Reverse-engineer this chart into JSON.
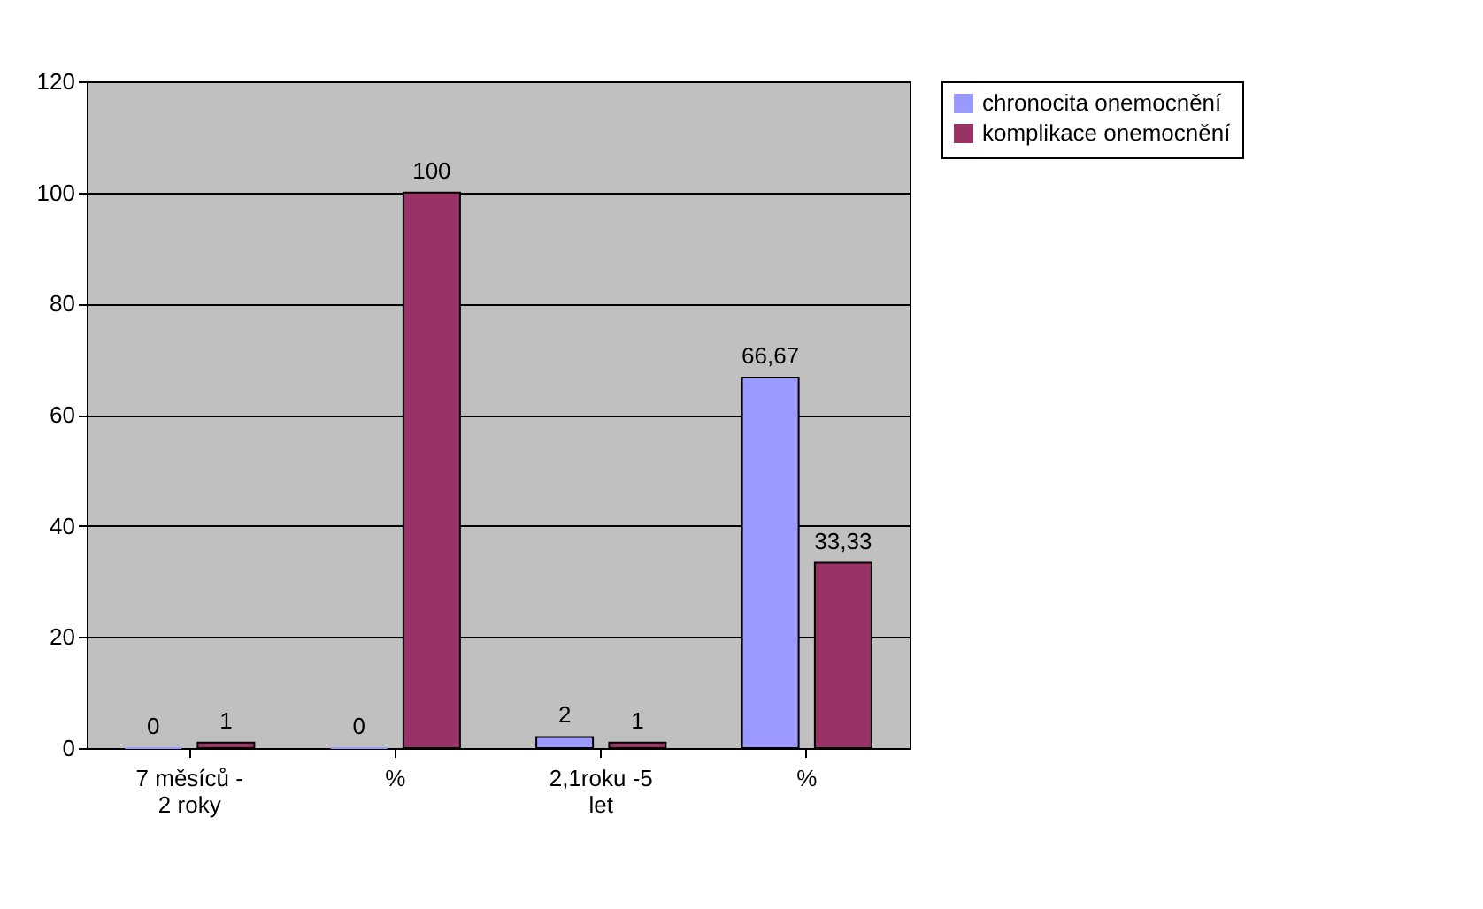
{
  "chart_data": {
    "type": "bar",
    "categories": [
      "7 měsíců - 2 roky",
      "%",
      "2,1roku -5 let",
      "%"
    ],
    "series": [
      {
        "name": "chronocita onemocnění",
        "color": "#9999ff",
        "values": [
          0,
          0,
          2,
          66.67
        ],
        "value_labels": [
          "0",
          "0",
          "2",
          "66,67"
        ]
      },
      {
        "name": "komplikace onemocnění",
        "color": "#993366",
        "values": [
          1,
          100,
          1,
          33.33
        ],
        "value_labels": [
          "1",
          "100",
          "1",
          "33,33"
        ]
      }
    ],
    "ylim": [
      0,
      120
    ],
    "yticks": [
      0,
      20,
      40,
      60,
      80,
      100,
      120
    ],
    "grid": "y",
    "legend": "right"
  }
}
